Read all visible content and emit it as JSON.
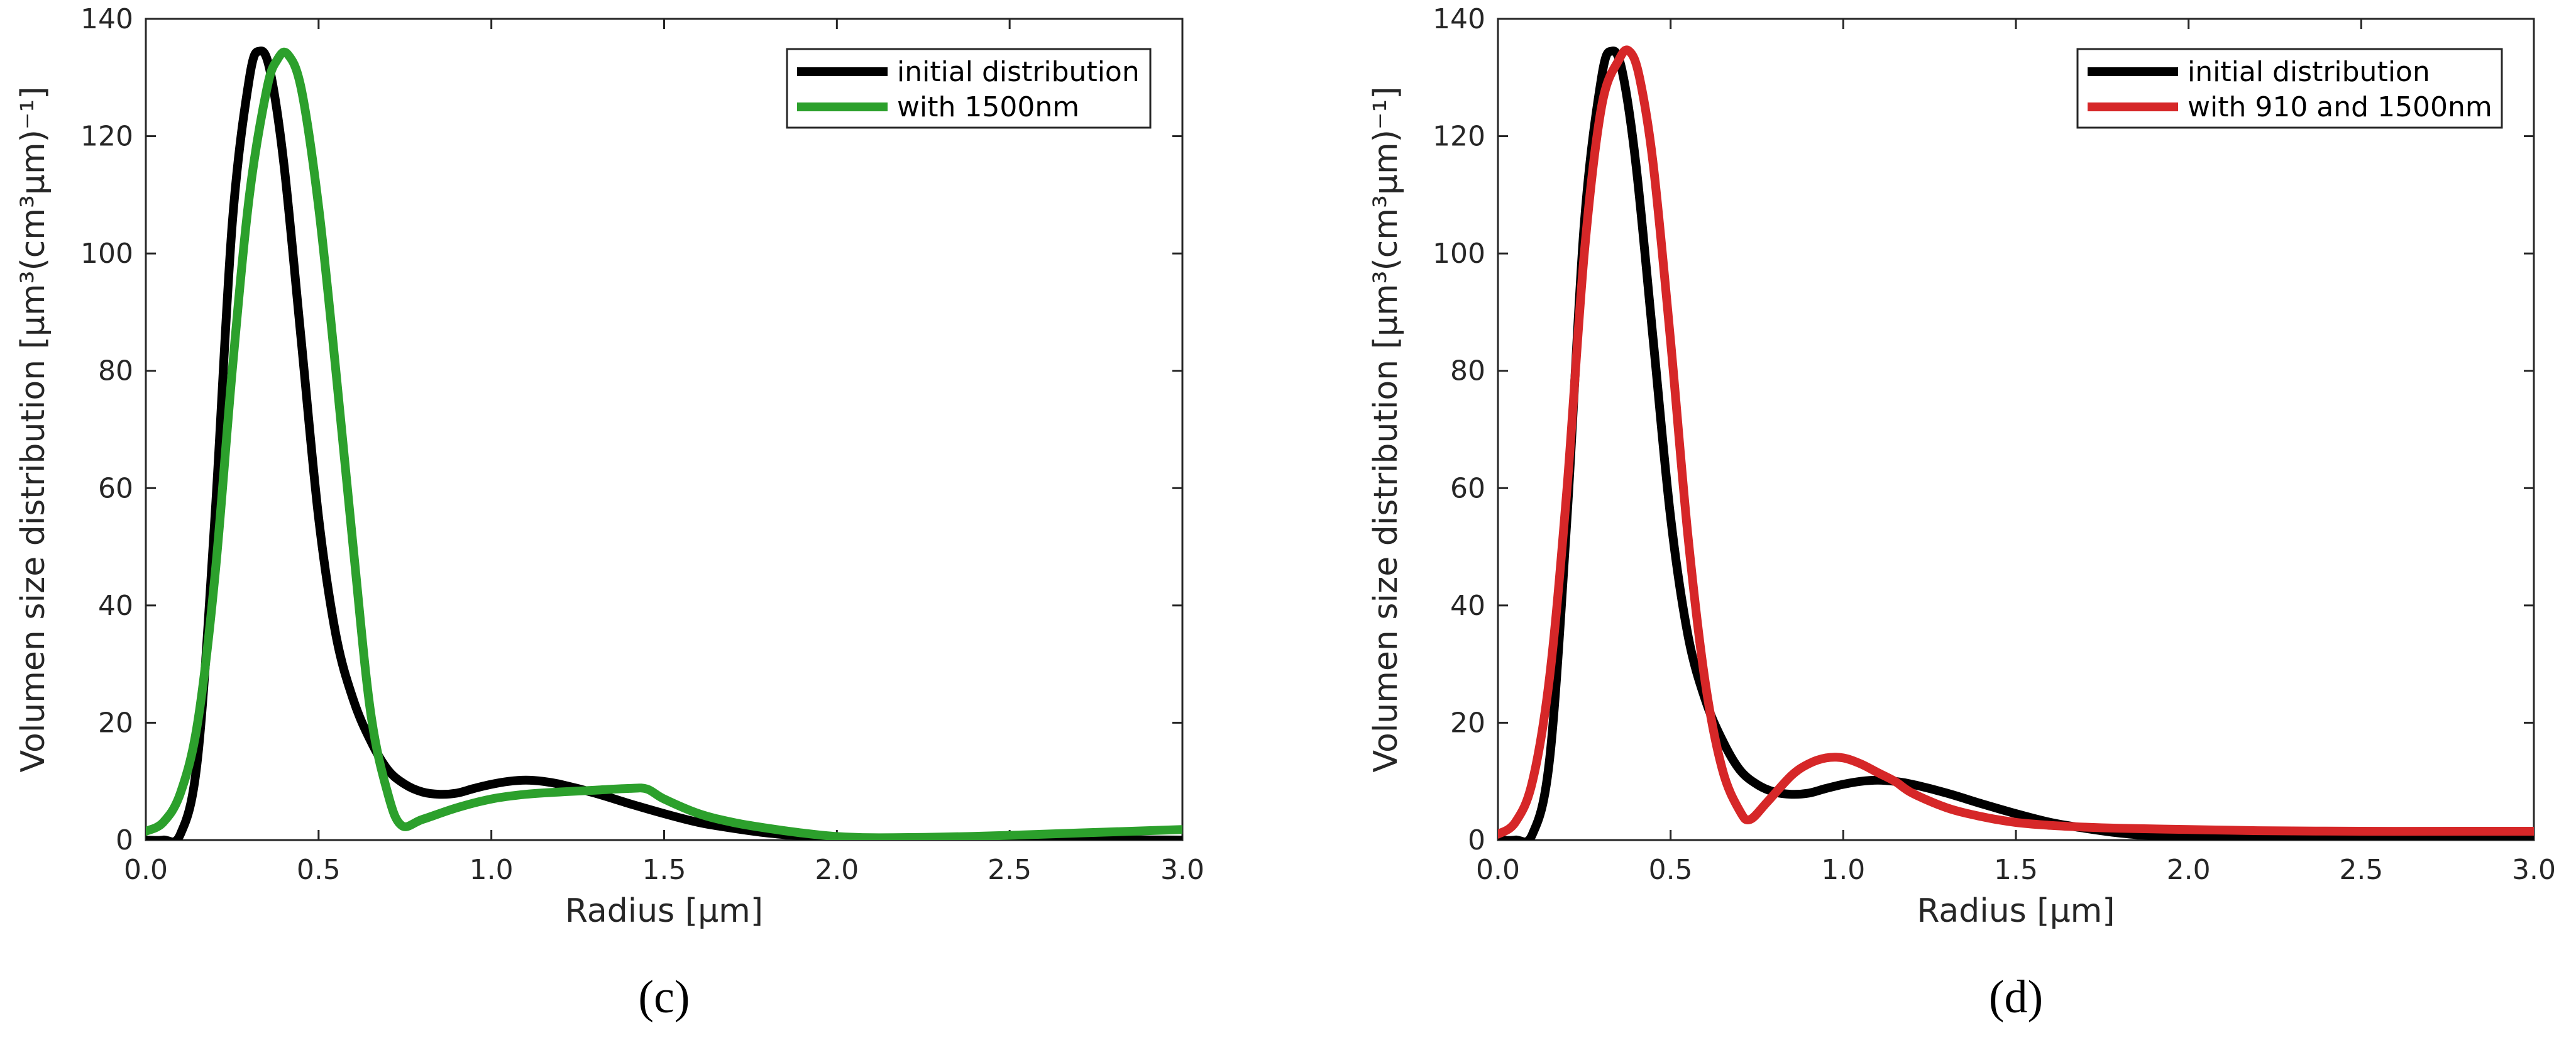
{
  "chart_data": [
    {
      "type": "line",
      "panel_label": "(c)",
      "xlabel": "Radius [μm]",
      "ylabel": "Volumen size distribution [μm³(cm³μm)⁻¹]",
      "xlim": [
        0,
        3
      ],
      "ylim": [
        0,
        140
      ],
      "xticks": [
        0,
        0.5,
        1,
        1.5,
        2,
        2.5,
        3
      ],
      "xtick_labels": [
        "0.0",
        "0.5",
        "1.0",
        "1.5",
        "2.0",
        "2.5",
        "3.0"
      ],
      "yticks": [
        0,
        20,
        40,
        60,
        80,
        100,
        120,
        140
      ],
      "ytick_labels": [
        "0",
        "20",
        "40",
        "60",
        "80",
        "100",
        "120",
        "140"
      ],
      "grid": false,
      "legend_position": "top-right",
      "series": [
        {
          "name": "initial distribution",
          "color": "#000000",
          "x": [
            0,
            0.05,
            0.1,
            0.15,
            0.2,
            0.25,
            0.3,
            0.33,
            0.36,
            0.4,
            0.45,
            0.5,
            0.55,
            0.6,
            0.65,
            0.7,
            0.75,
            0.8,
            0.85,
            0.9,
            0.95,
            1.0,
            1.05,
            1.1,
            1.15,
            1.2,
            1.3,
            1.4,
            1.5,
            1.6,
            1.7,
            1.8,
            1.9,
            2.0,
            2.2,
            2.5,
            2.8,
            3.0
          ],
          "y": [
            0,
            0,
            1,
            14,
            55,
            105,
            130,
            134.5,
            131,
            115,
            85,
            55,
            35,
            24,
            17,
            12,
            9.5,
            8.2,
            7.8,
            8.0,
            8.8,
            9.5,
            10,
            10.2,
            10,
            9.5,
            8,
            6.2,
            4.5,
            3,
            2,
            1.2,
            0.7,
            0.4,
            0.2,
            0.1,
            0.05,
            0
          ]
        },
        {
          "name": "with 1500nm",
          "color": "#2ca02c",
          "x": [
            0,
            0.05,
            0.1,
            0.15,
            0.2,
            0.25,
            0.3,
            0.35,
            0.38,
            0.41,
            0.45,
            0.5,
            0.55,
            0.6,
            0.65,
            0.7,
            0.74,
            0.8,
            0.9,
            1.0,
            1.1,
            1.2,
            1.3,
            1.4,
            1.45,
            1.5,
            1.6,
            1.7,
            1.8,
            1.9,
            2.0,
            2.1,
            2.3,
            2.5,
            2.7,
            2.9,
            3.0
          ],
          "y": [
            1.5,
            3,
            8,
            20,
            45,
            80,
            110,
            128,
            133,
            134,
            128,
            108,
            80,
            50,
            22,
            8,
            2.5,
            3.5,
            5.5,
            7,
            7.8,
            8.2,
            8.5,
            8.8,
            8.7,
            7,
            4.5,
            3,
            2,
            1.2,
            0.6,
            0.4,
            0.5,
            0.8,
            1.2,
            1.6,
            1.8
          ]
        }
      ]
    },
    {
      "type": "line",
      "panel_label": "(d)",
      "xlabel": "Radius [μm]",
      "ylabel": "Volumen size distribution [μm³(cm³μm)⁻¹]",
      "xlim": [
        0,
        3
      ],
      "ylim": [
        0,
        140
      ],
      "xticks": [
        0,
        0.5,
        1,
        1.5,
        2,
        2.5,
        3
      ],
      "xtick_labels": [
        "0.0",
        "0.5",
        "1.0",
        "1.5",
        "2.0",
        "2.5",
        "3.0"
      ],
      "yticks": [
        0,
        20,
        40,
        60,
        80,
        100,
        120,
        140
      ],
      "ytick_labels": [
        "0",
        "20",
        "40",
        "60",
        "80",
        "100",
        "120",
        "140"
      ],
      "grid": false,
      "legend_position": "top-right",
      "series": [
        {
          "name": "initial distribution",
          "color": "#000000",
          "x": [
            0,
            0.05,
            0.1,
            0.15,
            0.2,
            0.25,
            0.3,
            0.33,
            0.36,
            0.4,
            0.45,
            0.5,
            0.55,
            0.6,
            0.65,
            0.7,
            0.75,
            0.8,
            0.85,
            0.9,
            0.95,
            1.0,
            1.05,
            1.1,
            1.15,
            1.2,
            1.3,
            1.4,
            1.5,
            1.6,
            1.7,
            1.8,
            1.9,
            2.0,
            2.2,
            2.5,
            2.8,
            3.0
          ],
          "y": [
            0,
            0,
            1,
            14,
            55,
            105,
            130,
            134.5,
            131,
            115,
            85,
            55,
            35,
            24,
            17,
            12,
            9.5,
            8.2,
            7.8,
            8.0,
            8.8,
            9.5,
            10,
            10.2,
            10,
            9.5,
            8,
            6.2,
            4.5,
            3,
            2,
            1.2,
            0.7,
            0.4,
            0.2,
            0.1,
            0.05,
            0
          ]
        },
        {
          "name": "with 910 and 1500nm",
          "color": "#d62728",
          "x": [
            0,
            0.05,
            0.1,
            0.15,
            0.2,
            0.25,
            0.3,
            0.35,
            0.38,
            0.41,
            0.45,
            0.5,
            0.55,
            0.6,
            0.65,
            0.7,
            0.73,
            0.78,
            0.85,
            0.9,
            0.95,
            1.0,
            1.05,
            1.1,
            1.15,
            1.2,
            1.3,
            1.4,
            1.5,
            1.6,
            1.7,
            1.8,
            2.0,
            2.2,
            2.5,
            2.8,
            3.0
          ],
          "y": [
            1,
            3,
            10,
            28,
            60,
            100,
            125,
            133,
            134.5,
            130,
            115,
            85,
            52,
            27,
            12,
            5,
            3.5,
            6.5,
            11,
            13,
            14,
            14,
            13,
            11.5,
            10,
            8,
            5.5,
            4,
            3,
            2.5,
            2.2,
            2,
            1.8,
            1.6,
            1.5,
            1.5,
            1.5
          ]
        }
      ]
    }
  ]
}
